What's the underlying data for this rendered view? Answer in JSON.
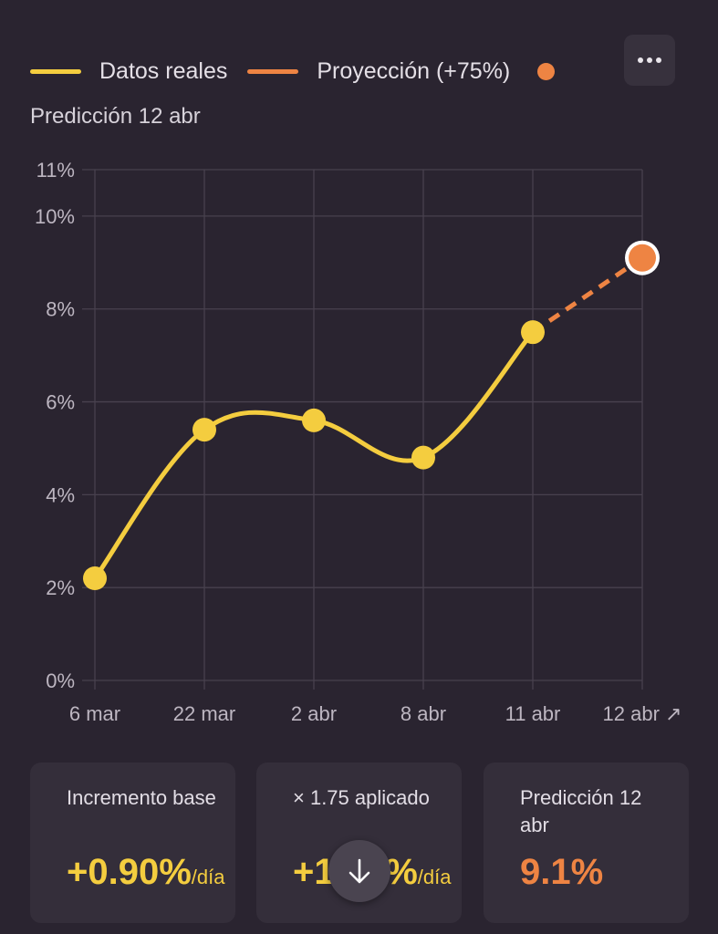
{
  "legend": {
    "actual_label": "Datos reales",
    "projection_label": "Proyección (+75%)"
  },
  "menu_icon": "more-horizontal-icon",
  "subtitle": "Predicción 12 abr",
  "colors": {
    "background": "#2a2430",
    "actual": "#f4cd3f",
    "projection": "#ee8443",
    "card": "#342e3a"
  },
  "chart_data": {
    "type": "line",
    "title": "Predicción 12 abr",
    "categories": [
      "6 mar",
      "22 mar",
      "2 abr",
      "8 abr",
      "11 abr",
      "12 abr ↗"
    ],
    "series": [
      {
        "name": "Datos reales",
        "values": [
          2.2,
          5.4,
          5.6,
          4.8,
          7.5,
          null
        ]
      },
      {
        "name": "Proyección (+75%)",
        "values": [
          null,
          null,
          null,
          null,
          7.5,
          9.1
        ]
      }
    ],
    "yticks": [
      "0%",
      "2%",
      "4%",
      "6%",
      "8%",
      "10%",
      "11%"
    ],
    "ytick_values": [
      0,
      2,
      4,
      6,
      8,
      10,
      11
    ],
    "ylim": [
      0,
      11
    ],
    "grid": true,
    "legend_position": "top-left"
  },
  "cards": [
    {
      "label": "Incremento base",
      "value": "+0.90%",
      "unit": "/día",
      "color": "#f4cd3f"
    },
    {
      "label": "× 1.75 aplicado",
      "value": "+1.58%",
      "unit": "/día",
      "color": "#f4cd3f"
    },
    {
      "label": "Predicción 12 abr",
      "value": "9.1%",
      "unit": "",
      "color": "#ee8443"
    }
  ],
  "fab_icon": "arrow-down-icon"
}
